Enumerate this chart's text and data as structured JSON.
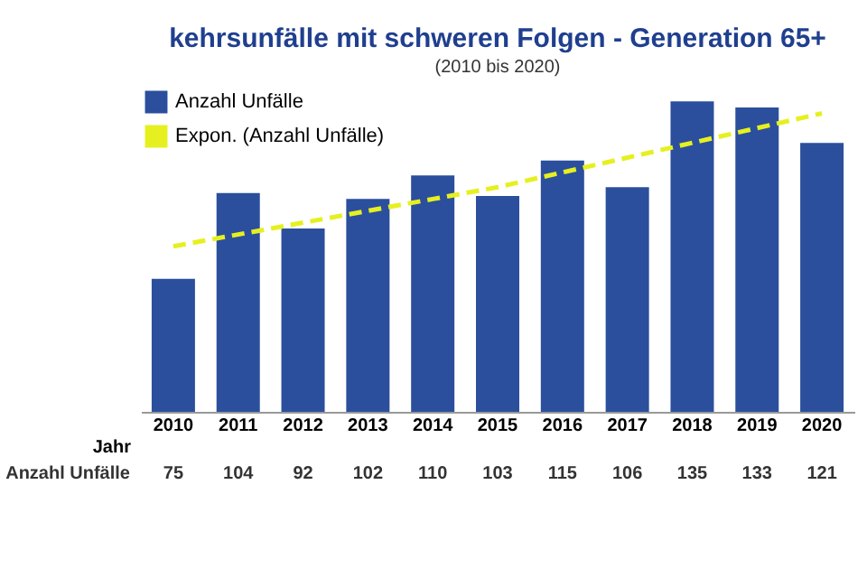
{
  "chart_data": {
    "type": "bar",
    "title": "kehrsunfälle mit schweren Folgen - Generation 65+",
    "subtitle": "(2010 bis 2020)",
    "xlabel": "Jahr",
    "categories": [
      "2010",
      "2011",
      "2012",
      "2013",
      "2014",
      "2015",
      "2016",
      "2017",
      "2018",
      "2019",
      "2020"
    ],
    "series": [
      {
        "name": "Anzahl Unfälle",
        "color": "#2b4f9c",
        "values": [
          75,
          104,
          92,
          102,
          110,
          103,
          115,
          106,
          135,
          133,
          121
        ],
        "value_labels": [
          "75",
          "104",
          "92",
          "102",
          "110",
          "103",
          "115",
          "106",
          "135",
          "133",
          "121"
        ]
      },
      {
        "name": "Expon. (Anzahl Unfälle)",
        "type": "line",
        "color": "#e6f020",
        "line_style": "dashed",
        "values": [
          86,
          90,
          94,
          98,
          102,
          106,
          111,
          116,
          121,
          126,
          131
        ]
      }
    ],
    "ylim": [
      30,
      140
    ],
    "tick_labels": "x",
    "legend": "top left",
    "grid": false
  }
}
